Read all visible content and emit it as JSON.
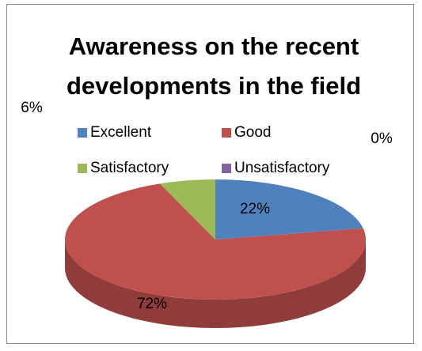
{
  "chart_data": {
    "type": "pie",
    "title": "Awareness on the recent developments in the field",
    "categories": [
      "Excellent",
      "Good",
      "Satisfactory",
      "Unsatisfactory"
    ],
    "values": [
      22,
      72,
      6,
      0
    ],
    "value_labels": [
      "22%",
      "72%",
      "6%",
      "0%"
    ],
    "colors": [
      "#4f81bd",
      "#c0504d",
      "#9bbb59",
      "#8064a2"
    ],
    "legend": "top"
  }
}
